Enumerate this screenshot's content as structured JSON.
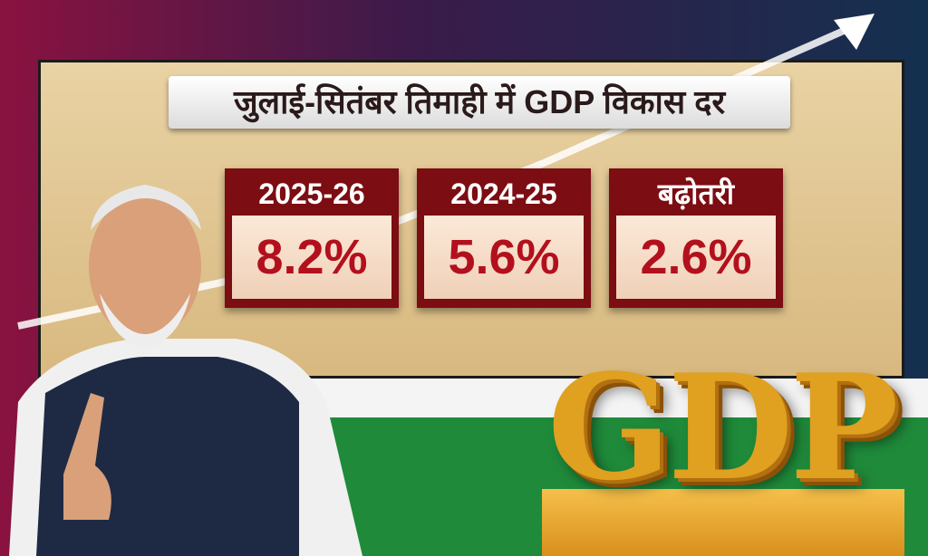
{
  "header": {
    "title": "जुलाई-सितंबर तिमाही में GDP विकास दर"
  },
  "cards": [
    {
      "label": "2025-26",
      "value": "8.2%"
    },
    {
      "label": "2024-25",
      "value": "5.6%"
    },
    {
      "label": "बढ़ोतरी",
      "value": "2.6%"
    }
  ],
  "logo": {
    "text": "GDP"
  }
}
